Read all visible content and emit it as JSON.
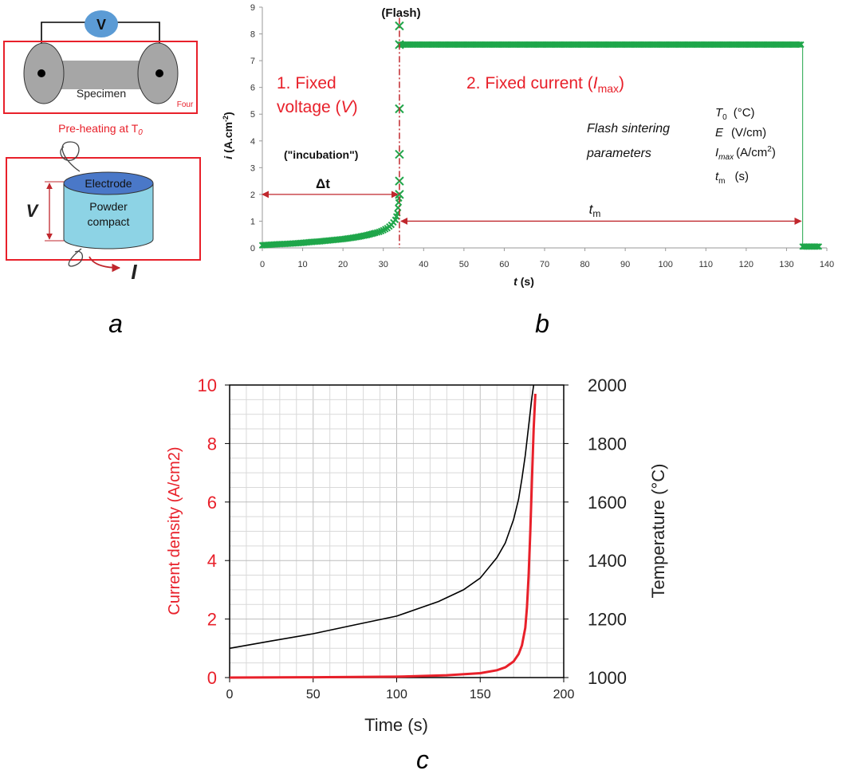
{
  "panel_labels": {
    "a": "a",
    "b": "b",
    "c": "c"
  },
  "colors": {
    "red": "#e8202a",
    "green": "#1fa64a",
    "dark_red": "#c0272d",
    "blue_v": "#5b9bd5",
    "electrode": "#4a78c8",
    "compact": "#8dd3e5",
    "gray": "#a6a6a6",
    "black": "#000000"
  },
  "panel_a": {
    "voltmeter": "V",
    "specimen": "Specimen",
    "furnace": "Four",
    "preheat": "Pre-heating at T",
    "preheat_sub": "0",
    "electrode": "Electrode",
    "powder_1": "Powder",
    "powder_2": "compact",
    "v_label": "V",
    "i_label": "I"
  },
  "panel_b": {
    "flash": "(Flash)",
    "stage1_line1": "1. Fixed",
    "stage1_line2_pre": "voltage (",
    "stage1_line2_var": "V",
    "stage1_line2_post": ")",
    "stage2_pre": "2. Fixed current (",
    "stage2_var": "I",
    "stage2_sub": "max",
    "stage2_post": ")",
    "incubation": "(\"incubation\")",
    "delta_t": "Δt",
    "tm": "t",
    "tm_sub": "m",
    "params_1": "Flash sintering",
    "params_2": "parameters",
    "p_T0": "T",
    "p_T0_sub": "0",
    "p_T0_unit": "(°C)",
    "p_E": "E",
    "p_E_unit": "(V/cm)",
    "p_Imax": "I",
    "p_Imax_sub": "max",
    "p_Imax_unit": "(A/cm",
    "p_Imax_sup": "2",
    "p_Imax_close": ")",
    "p_tm": "t",
    "p_tm_sub": "m",
    "p_tm_unit": "(s)",
    "ylabel_main": "i",
    "ylabel_unit": "(A.cm",
    "ylabel_sup": "-2",
    "ylabel_close": ")",
    "xlabel_main": "t",
    "xlabel_unit": "(s)"
  },
  "chart_data": [
    {
      "id": "b",
      "type": "scatter",
      "xlabel": "t (s)",
      "ylabel": "i (A.cm-2)",
      "xlim": [
        0,
        140
      ],
      "ylim": [
        0,
        9
      ],
      "xticks": [
        0,
        10,
        20,
        30,
        40,
        50,
        60,
        70,
        80,
        90,
        100,
        110,
        120,
        130,
        140
      ],
      "yticks": [
        0,
        1,
        2,
        3,
        4,
        5,
        6,
        7,
        8,
        9
      ],
      "flash_time": 34,
      "end_time": 134,
      "grid": false,
      "series": [
        {
          "values": [
            [
              0,
              0.1
            ],
            [
              2,
              0.12
            ],
            [
              4,
              0.14
            ],
            [
              6,
              0.15
            ],
            [
              8,
              0.17
            ],
            [
              10,
              0.19
            ],
            [
              12,
              0.22
            ],
            [
              14,
              0.24
            ],
            [
              16,
              0.27
            ],
            [
              18,
              0.3
            ],
            [
              20,
              0.33
            ],
            [
              22,
              0.37
            ],
            [
              24,
              0.42
            ],
            [
              26,
              0.48
            ],
            [
              28,
              0.56
            ],
            [
              29,
              0.6
            ],
            [
              30,
              0.66
            ],
            [
              31,
              0.74
            ],
            [
              32,
              0.86
            ],
            [
              33,
              1.05
            ],
            [
              33.5,
              1.3
            ],
            [
              33.8,
              1.7
            ],
            [
              34,
              2.0
            ],
            [
              34,
              2.5
            ],
            [
              34,
              3.5
            ],
            [
              34,
              5.2
            ],
            [
              34,
              8.3
            ],
            [
              34,
              7.6
            ],
            [
              40,
              7.6
            ],
            [
              50,
              7.6
            ],
            [
              60,
              7.6
            ],
            [
              70,
              7.6
            ],
            [
              80,
              7.6
            ],
            [
              90,
              7.6
            ],
            [
              100,
              7.6
            ],
            [
              110,
              7.6
            ],
            [
              120,
              7.6
            ],
            [
              130,
              7.6
            ],
            [
              134,
              7.6
            ],
            [
              134,
              0.05
            ],
            [
              136,
              0.05
            ],
            [
              138,
              0.05
            ]
          ]
        }
      ]
    },
    {
      "id": "c",
      "type": "line",
      "xlabel": "Time (s)",
      "ylabel": "Current density (A/cm2)",
      "y2label": "Temperature (°C)",
      "xlim": [
        0,
        200
      ],
      "ylim": [
        0,
        10
      ],
      "y2lim": [
        1000,
        2000
      ],
      "xticks": [
        0,
        50,
        100,
        150,
        200
      ],
      "yticks": [
        0,
        2,
        4,
        6,
        8,
        10
      ],
      "y2ticks": [
        1000,
        1200,
        1400,
        1600,
        1800,
        2000
      ],
      "grid": true,
      "series": [
        {
          "axis": "left",
          "color": "#e8202a",
          "x": [
            0,
            50,
            100,
            130,
            150,
            160,
            165,
            170,
            173,
            175,
            177,
            178,
            179,
            180,
            181,
            182,
            183
          ],
          "y": [
            0,
            0.01,
            0.03,
            0.08,
            0.15,
            0.25,
            0.35,
            0.55,
            0.8,
            1.1,
            1.7,
            2.4,
            3.5,
            5.0,
            6.8,
            8.5,
            9.7
          ]
        },
        {
          "axis": "right",
          "color": "#000000",
          "x": [
            0,
            25,
            50,
            75,
            100,
            125,
            140,
            150,
            160,
            165,
            170,
            173,
            175,
            177,
            179,
            181,
            182
          ],
          "y": [
            1100,
            1125,
            1150,
            1180,
            1210,
            1260,
            1300,
            1340,
            1410,
            1460,
            1540,
            1610,
            1680,
            1760,
            1860,
            1960,
            2000
          ]
        }
      ]
    }
  ]
}
